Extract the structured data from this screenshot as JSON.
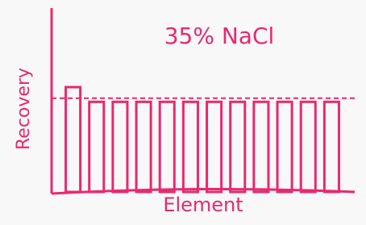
{
  "chart_data": {
    "type": "bar",
    "title": "35% NaCl",
    "x_label": "Element",
    "y_label": "Recovery",
    "categories": [
      null,
      null,
      null,
      null,
      null,
      null,
      null,
      null,
      null,
      null,
      null,
      null
    ],
    "values": [
      57,
      49,
      49,
      49,
      49,
      49,
      49,
      49,
      49,
      49,
      49,
      49
    ],
    "reference_line": 51,
    "color": "#e8296f",
    "ylim": [
      0,
      100
    ]
  }
}
